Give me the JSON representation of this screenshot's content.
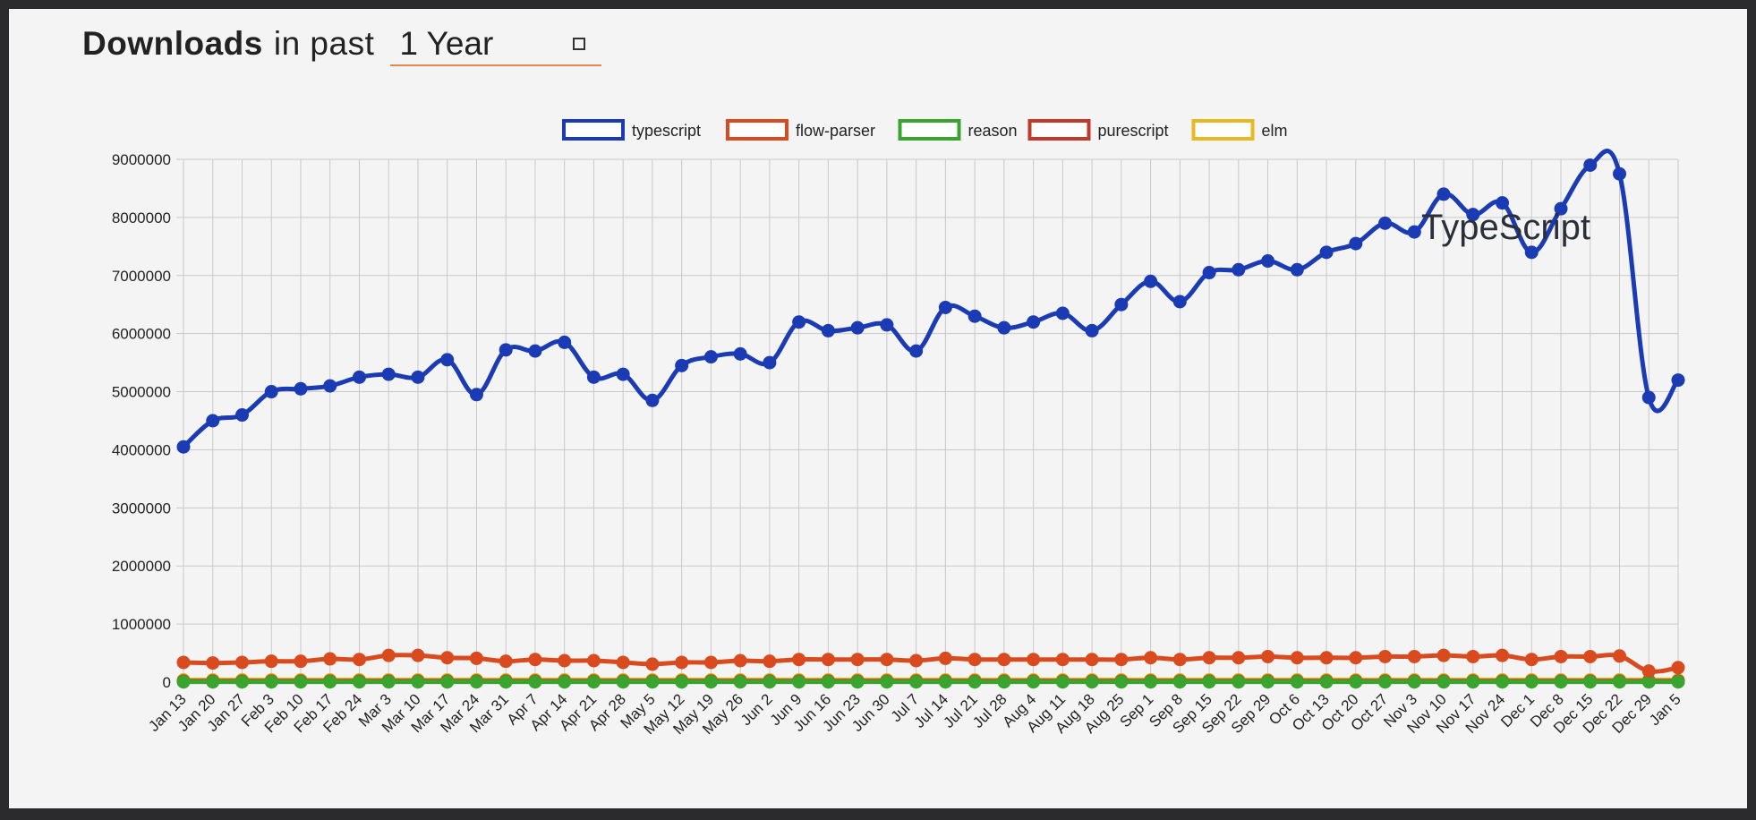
{
  "header": {
    "title_bold": "Downloads",
    "title_rest": "in past",
    "period_value": "1 Year"
  },
  "chart_data": {
    "type": "line",
    "title": "",
    "xlabel": "",
    "ylabel": "",
    "ylim": [
      0,
      9000000
    ],
    "yticks": [
      0,
      1000000,
      2000000,
      3000000,
      4000000,
      5000000,
      6000000,
      7000000,
      8000000,
      9000000
    ],
    "grid": true,
    "legend_position": "top-center",
    "annotation": "TypeScript",
    "categories": [
      "Jan 13",
      "Jan 20",
      "Jan 27",
      "Feb 3",
      "Feb 10",
      "Feb 17",
      "Feb 24",
      "Mar 3",
      "Mar 10",
      "Mar 17",
      "Mar 24",
      "Mar 31",
      "Apr 7",
      "Apr 14",
      "Apr 21",
      "Apr 28",
      "May 5",
      "May 12",
      "May 19",
      "May 26",
      "Jun 2",
      "Jun 9",
      "Jun 16",
      "Jun 23",
      "Jun 30",
      "Jul 7",
      "Jul 14",
      "Jul 21",
      "Jul 28",
      "Aug 4",
      "Aug 11",
      "Aug 18",
      "Aug 25",
      "Sep 1",
      "Sep 8",
      "Sep 15",
      "Sep 22",
      "Sep 29",
      "Oct 6",
      "Oct 13",
      "Oct 20",
      "Oct 27",
      "Nov 3",
      "Nov 10",
      "Nov 17",
      "Nov 24",
      "Dec 1",
      "Dec 8",
      "Dec 15",
      "Dec 22",
      "Dec 29",
      "Jan 5"
    ],
    "series": [
      {
        "name": "typescript",
        "color": "#1a3bb3",
        "values": [
          4050000,
          4500000,
          4600000,
          5000000,
          5050000,
          5100000,
          5250000,
          5300000,
          5250000,
          5550000,
          4950000,
          5720000,
          5700000,
          5850000,
          5250000,
          5300000,
          4850000,
          5450000,
          5600000,
          5650000,
          5500000,
          6200000,
          6050000,
          6100000,
          6150000,
          5700000,
          6450000,
          6300000,
          6100000,
          6200000,
          6350000,
          6050000,
          6500000,
          6900000,
          6550000,
          7050000,
          7100000,
          7250000,
          7100000,
          7400000,
          7550000,
          7900000,
          7750000,
          8400000,
          8050000,
          8250000,
          7400000,
          8150000,
          8900000,
          8750000,
          4900000,
          5200000
        ]
      },
      {
        "name": "flow-parser",
        "color": "#d94a1e",
        "values": [
          340000,
          330000,
          340000,
          360000,
          360000,
          400000,
          390000,
          460000,
          460000,
          420000,
          410000,
          360000,
          390000,
          370000,
          370000,
          340000,
          310000,
          340000,
          340000,
          370000,
          360000,
          390000,
          390000,
          390000,
          390000,
          370000,
          410000,
          390000,
          390000,
          390000,
          390000,
          390000,
          390000,
          420000,
          390000,
          420000,
          420000,
          440000,
          420000,
          420000,
          420000,
          440000,
          440000,
          460000,
          440000,
          460000,
          390000,
          440000,
          440000,
          450000,
          190000,
          250000
        ]
      },
      {
        "name": "reason",
        "color": "#3aa52e",
        "values": [
          5000,
          5000,
          5000,
          5000,
          5000,
          5000,
          5000,
          5000,
          5000,
          5000,
          5000,
          5000,
          5000,
          5000,
          5000,
          5000,
          5000,
          5000,
          5000,
          5000,
          5000,
          5000,
          5000,
          5000,
          5000,
          5000,
          5000,
          5000,
          5000,
          5000,
          5000,
          5000,
          5000,
          5000,
          5000,
          5000,
          5000,
          5000,
          5000,
          5000,
          5000,
          5000,
          5000,
          5000,
          5000,
          5000,
          5000,
          5000,
          5000,
          5000,
          5000,
          5000
        ]
      },
      {
        "name": "purescript",
        "color": "#c0392b",
        "values": [
          20000,
          20000,
          20000,
          20000,
          20000,
          20000,
          20000,
          20000,
          20000,
          20000,
          20000,
          20000,
          20000,
          20000,
          20000,
          20000,
          20000,
          20000,
          20000,
          20000,
          20000,
          20000,
          20000,
          20000,
          20000,
          20000,
          20000,
          20000,
          20000,
          20000,
          20000,
          20000,
          20000,
          20000,
          20000,
          20000,
          20000,
          20000,
          20000,
          20000,
          20000,
          20000,
          20000,
          20000,
          20000,
          20000,
          20000,
          20000,
          20000,
          20000,
          20000,
          20000
        ]
      },
      {
        "name": "elm",
        "color": "#e8b923",
        "values": [
          40000,
          40000,
          40000,
          40000,
          40000,
          40000,
          40000,
          40000,
          40000,
          40000,
          40000,
          40000,
          40000,
          40000,
          40000,
          40000,
          40000,
          40000,
          40000,
          40000,
          40000,
          40000,
          40000,
          40000,
          40000,
          40000,
          40000,
          40000,
          40000,
          40000,
          40000,
          40000,
          40000,
          40000,
          40000,
          40000,
          40000,
          40000,
          40000,
          40000,
          40000,
          40000,
          40000,
          40000,
          40000,
          40000,
          40000,
          40000,
          40000,
          40000,
          40000,
          40000
        ]
      }
    ]
  }
}
